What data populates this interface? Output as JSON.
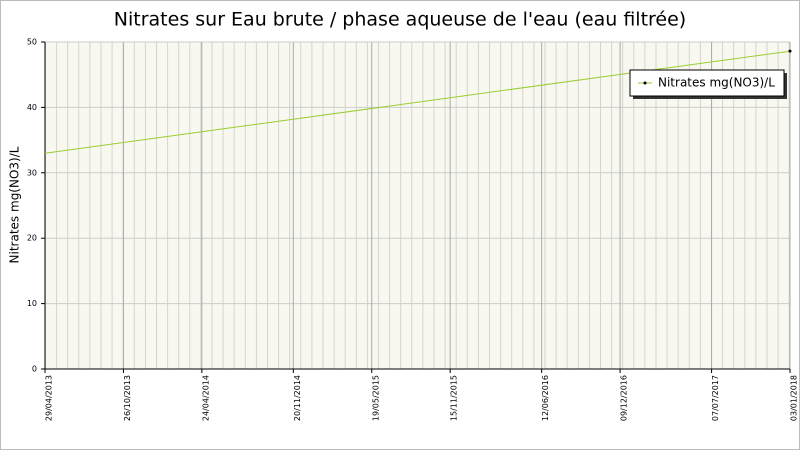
{
  "chart_data": {
    "type": "line",
    "title": "Nitrates sur Eau brute / phase aqueuse de l'eau (eau filtrée)",
    "y_label": "Nitrates mg(NO3)/L",
    "x": [
      "29/04/2013",
      "03/01/2018"
    ],
    "series": [
      {
        "name": "Nitrates mg(NO3)/L",
        "color": "#9acd32",
        "values": [
          33,
          48.6
        ]
      }
    ],
    "xlim": [
      "29/04/2013",
      "03/01/2018"
    ],
    "xticks": [
      "29/04/2013",
      "26/10/2013",
      "24/04/2014",
      "20/11/2014",
      "19/05/2015",
      "15/11/2015",
      "12/06/2016",
      "09/12/2016",
      "07/07/2017",
      "03/01/2018"
    ],
    "ylim": [
      0,
      50
    ],
    "yticks": [
      0,
      10,
      20,
      30,
      40,
      50
    ],
    "grid": true,
    "legend": "top-right"
  }
}
